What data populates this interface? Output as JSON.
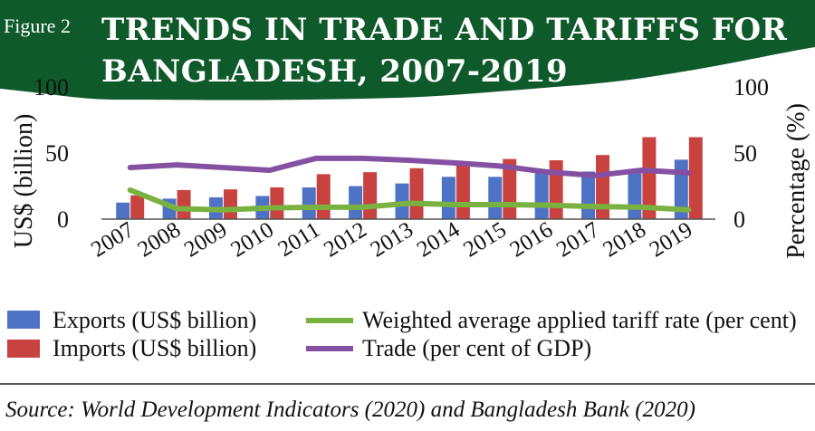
{
  "figure_label": "Figure 2",
  "title_line1": "TRENDS IN TRADE AND TARIFFS FOR",
  "title_line2": "BANGLADESH, 2007-2019",
  "source": "Source: World Development Indicators (2020) and Bangladesh Bank (2020)",
  "colors": {
    "banner": "#0f5a2a",
    "exports": "#4f73c4",
    "imports": "#c84240",
    "tariff": "#7ab241",
    "trade": "#8451a2"
  },
  "chart_data": {
    "type": "bar",
    "categories": [
      "2007",
      "2008",
      "2009",
      "2010",
      "2011",
      "2012",
      "2013",
      "2014",
      "2015",
      "2016",
      "2017",
      "2018",
      "2019"
    ],
    "series": [
      {
        "name": "Exports (US$ billion)",
        "kind": "bar",
        "axis": "left",
        "color_key": "exports",
        "values": [
          12.5,
          15.5,
          16.5,
          17.5,
          24,
          25,
          27,
          32,
          32,
          36,
          36,
          38,
          45
        ]
      },
      {
        "name": "Imports (US$ billion)",
        "kind": "bar",
        "axis": "left",
        "color_key": "imports",
        "values": [
          18,
          22,
          22.5,
          24,
          34,
          35.5,
          38.5,
          41,
          45.5,
          44.5,
          48.5,
          62,
          62
        ]
      },
      {
        "name": "Weighted average applied tariff rate (per cent)",
        "kind": "line",
        "axis": "right",
        "color_key": "tariff",
        "values": [
          22,
          8,
          7,
          8.5,
          9,
          9,
          12,
          11,
          11,
          10.5,
          9.5,
          9,
          7
        ]
      },
      {
        "name": "Trade (per cent of GDP)",
        "kind": "line",
        "axis": "right",
        "color_key": "trade",
        "values": [
          39,
          41,
          39,
          37,
          46,
          46,
          44.5,
          42.5,
          40,
          35.5,
          33,
          37,
          35
        ]
      }
    ],
    "ylabel": "US$ (billion)",
    "y2label": "Percentage (%)",
    "ylim": [
      0,
      100
    ],
    "y2lim": [
      0,
      100
    ],
    "yticks": [
      "0",
      "50",
      "100"
    ],
    "y2ticks": [
      "0",
      "50",
      "100"
    ],
    "legend": [
      "Exports (US$ billion)",
      "Imports (US$ billion)",
      "Weighted average applied tariff rate (per cent)",
      "Trade (per cent of GDP)"
    ],
    "legend_position": "bottom",
    "grid": false
  }
}
